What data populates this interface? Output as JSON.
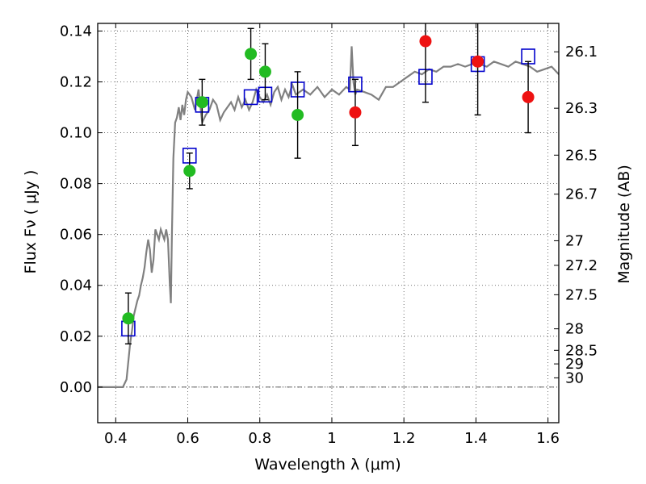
{
  "chart_data": {
    "type": "scatter",
    "title": "",
    "xlabel": "Wavelength  λ (μm)",
    "ylabel": "Flux  Fν  ( μJy )",
    "y2label": "Magnitude (AB)",
    "xlim": [
      0.35,
      1.63
    ],
    "ylim": [
      -0.014,
      0.143
    ],
    "grid": true,
    "x_ticks": [
      0.4,
      0.6,
      0.8,
      1.0,
      1.2,
      1.4,
      1.6
    ],
    "x_tick_labels": [
      "0.4",
      "0.6",
      "0.8",
      "1",
      "1.2",
      "1.4",
      "1.6"
    ],
    "y_ticks": [
      0.0,
      0.02,
      0.04,
      0.06,
      0.08,
      0.1,
      0.12,
      0.14
    ],
    "y_tick_labels": [
      "0.00",
      "0.02",
      "0.04",
      "0.06",
      "0.08",
      "0.10",
      "0.12",
      "0.14"
    ],
    "y2_ticks": [
      {
        "label": "26.1",
        "mag": 26.1
      },
      {
        "label": "26.3",
        "mag": 26.3
      },
      {
        "label": "26.5",
        "mag": 26.5
      },
      {
        "label": "26.7",
        "mag": 26.7
      },
      {
        "label": "27",
        "mag": 27.0
      },
      {
        "label": "27.2",
        "mag": 27.2
      },
      {
        "label": "27.5",
        "mag": 27.5
      },
      {
        "label": "28",
        "mag": 28.0
      },
      {
        "label": "28.5",
        "mag": 28.5
      },
      {
        "label": "29",
        "mag": 29.0
      },
      {
        "label": "30",
        "mag": 30.0
      }
    ],
    "series": [
      {
        "type": "line",
        "color": "#808080",
        "x": [
          0.35,
          0.42,
          0.43,
          0.44,
          0.445,
          0.45,
          0.455,
          0.46,
          0.465,
          0.47,
          0.475,
          0.48,
          0.485,
          0.49,
          0.495,
          0.5,
          0.505,
          0.51,
          0.515,
          0.52,
          0.525,
          0.53,
          0.535,
          0.54,
          0.545,
          0.55,
          0.553,
          0.556,
          0.56,
          0.565,
          0.57,
          0.575,
          0.58,
          0.585,
          0.59,
          0.595,
          0.6,
          0.61,
          0.62,
          0.63,
          0.64,
          0.65,
          0.66,
          0.67,
          0.68,
          0.69,
          0.7,
          0.71,
          0.72,
          0.73,
          0.74,
          0.75,
          0.76,
          0.77,
          0.78,
          0.79,
          0.8,
          0.81,
          0.82,
          0.83,
          0.84,
          0.85,
          0.86,
          0.87,
          0.88,
          0.89,
          0.9,
          0.92,
          0.94,
          0.96,
          0.98,
          1.0,
          1.02,
          1.04,
          1.05,
          1.055,
          1.06,
          1.065,
          1.07,
          1.09,
          1.11,
          1.13,
          1.15,
          1.17,
          1.19,
          1.21,
          1.23,
          1.25,
          1.27,
          1.29,
          1.31,
          1.33,
          1.35,
          1.37,
          1.39,
          1.41,
          1.43,
          1.45,
          1.47,
          1.49,
          1.51,
          1.53,
          1.55,
          1.57,
          1.59,
          1.61,
          1.63
        ],
        "y": [
          0.0,
          0.0,
          0.003,
          0.017,
          0.022,
          0.028,
          0.031,
          0.034,
          0.036,
          0.04,
          0.043,
          0.047,
          0.053,
          0.058,
          0.054,
          0.045,
          0.05,
          0.062,
          0.06,
          0.058,
          0.062,
          0.06,
          0.058,
          0.062,
          0.058,
          0.041,
          0.033,
          0.06,
          0.09,
          0.104,
          0.106,
          0.11,
          0.105,
          0.111,
          0.107,
          0.113,
          0.116,
          0.114,
          0.109,
          0.117,
          0.104,
          0.107,
          0.109,
          0.113,
          0.111,
          0.105,
          0.108,
          0.11,
          0.112,
          0.109,
          0.114,
          0.11,
          0.113,
          0.109,
          0.112,
          0.117,
          0.114,
          0.112,
          0.115,
          0.111,
          0.116,
          0.118,
          0.113,
          0.117,
          0.114,
          0.119,
          0.115,
          0.117,
          0.115,
          0.118,
          0.114,
          0.117,
          0.115,
          0.118,
          0.117,
          0.134,
          0.12,
          0.115,
          0.117,
          0.116,
          0.115,
          0.113,
          0.118,
          0.118,
          0.12,
          0.122,
          0.124,
          0.123,
          0.125,
          0.124,
          0.126,
          0.126,
          0.127,
          0.126,
          0.127,
          0.127,
          0.126,
          0.128,
          0.127,
          0.126,
          0.128,
          0.127,
          0.126,
          0.124,
          0.125,
          0.126,
          0.123
        ]
      },
      {
        "type": "scatter",
        "marker": "square-open",
        "color": "#0000cc",
        "x": [
          0.435,
          0.605,
          0.64,
          0.775,
          0.815,
          0.905,
          1.065,
          1.26,
          1.405,
          1.545
        ],
        "y": [
          0.023,
          0.091,
          0.111,
          0.114,
          0.115,
          0.117,
          0.119,
          0.122,
          0.127,
          0.13
        ]
      },
      {
        "type": "scatter",
        "marker": "circle",
        "color": "#22bb22",
        "x": [
          0.435,
          0.605,
          0.64,
          0.775,
          0.815,
          0.905
        ],
        "y": [
          0.027,
          0.085,
          0.112,
          0.131,
          0.124,
          0.107
        ],
        "err": [
          0.01,
          0.007,
          0.009,
          0.01,
          0.011,
          0.017
        ]
      },
      {
        "type": "scatter",
        "marker": "circle",
        "color": "#ee1111",
        "x": [
          1.065,
          1.26,
          1.405,
          1.545
        ],
        "y": [
          0.108,
          0.136,
          0.128,
          0.114
        ],
        "err": [
          0.013,
          0.024,
          0.021,
          0.014
        ]
      }
    ]
  }
}
